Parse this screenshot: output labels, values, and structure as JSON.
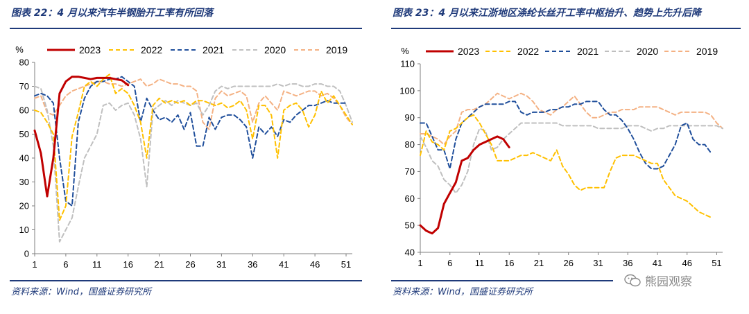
{
  "left_title": "图表 22：4 月以来汽车半钢胎开工率有所回落",
  "right_title": "图表 23：4 月以来江浙地区涤纶长丝开工率中枢抬升、趋势上先升后降",
  "left_source": "资料来源：Wind，国盛证券研究所",
  "right_source": "资料来源：Wind，国盛证券研究所",
  "watermark": "熊园观察",
  "colors": {
    "title": "#1f3a7a",
    "s2023": "#c00000",
    "s2022": "#ffc000",
    "s2021": "#1f4e9b",
    "s2020": "#bfbfbf",
    "s2019": "#f4b183"
  },
  "chart_data": [
    {
      "type": "line",
      "title": "4 月以来汽车半钢胎开工率有所回落",
      "unit_label": "%",
      "xlabel": "",
      "ylabel": "%",
      "xlim": [
        1,
        52
      ],
      "ylim": [
        0,
        80
      ],
      "x_ticks": [
        1,
        6,
        11,
        16,
        21,
        26,
        31,
        36,
        41,
        46,
        51
      ],
      "y_ticks": [
        0,
        10,
        20,
        30,
        40,
        50,
        60,
        70,
        80
      ],
      "legend": "top",
      "series": [
        {
          "name": "2023",
          "style": "solid",
          "x": [
            1,
            2,
            3,
            4,
            5,
            6,
            7,
            8,
            9,
            10,
            11,
            12,
            13,
            14,
            15,
            16
          ],
          "values": [
            51.5,
            42,
            24,
            40,
            67,
            72,
            74,
            74,
            73.5,
            73,
            73.5,
            73.5,
            73.5,
            73,
            72.5,
            70.5
          ]
        },
        {
          "name": "2022",
          "style": "dash",
          "x": [
            1,
            2,
            3,
            4,
            5,
            6,
            7,
            8,
            9,
            10,
            11,
            12,
            13,
            14,
            15,
            16,
            17,
            18,
            19,
            20,
            21,
            22,
            23,
            24,
            25,
            26,
            27,
            28,
            29,
            30,
            31,
            32,
            33,
            34,
            35,
            36,
            37,
            38,
            39,
            40,
            41,
            42,
            43,
            44,
            45,
            46,
            47,
            48,
            49,
            50,
            51,
            52
          ],
          "values": [
            60,
            59,
            55,
            50,
            14,
            20,
            49,
            59,
            70,
            72,
            70,
            73,
            75,
            67,
            69,
            67,
            62,
            55,
            40,
            62,
            65,
            63,
            64,
            63,
            64,
            62,
            64,
            64,
            63,
            62,
            63,
            61,
            62,
            64,
            60,
            48,
            62,
            62,
            58,
            40,
            60,
            62,
            63,
            60,
            53,
            58,
            68,
            63,
            66,
            62,
            58,
            54
          ]
        },
        {
          "name": "2021",
          "style": "dash",
          "x": [
            1,
            2,
            3,
            4,
            5,
            6,
            7,
            8,
            9,
            10,
            11,
            12,
            13,
            14,
            15,
            16,
            17,
            18,
            19,
            20,
            21,
            22,
            23,
            24,
            25,
            26,
            27,
            28,
            29,
            30,
            31,
            32,
            33,
            34,
            35,
            36,
            37,
            38,
            39,
            40,
            41,
            42,
            43,
            44,
            45,
            46,
            47,
            48,
            49,
            50,
            51
          ],
          "values": [
            66,
            67,
            66,
            63,
            40,
            22,
            20,
            55,
            65,
            70,
            72,
            72,
            73,
            73,
            74,
            72,
            70,
            55,
            65,
            60,
            56,
            57,
            55,
            58,
            52,
            59,
            45,
            45,
            57,
            52,
            57,
            58,
            58,
            56,
            53,
            40,
            53,
            50,
            53,
            49,
            56,
            55,
            58,
            60,
            62,
            62,
            63,
            64,
            63,
            63,
            63
          ]
        },
        {
          "name": "2020",
          "style": "dash",
          "x": [
            1,
            2,
            3,
            4,
            5,
            6,
            7,
            8,
            9,
            10,
            11,
            12,
            13,
            14,
            15,
            16,
            17,
            18,
            19,
            20,
            21,
            22,
            23,
            24,
            25,
            26,
            27,
            28,
            29,
            30,
            31,
            32,
            33,
            34,
            35,
            36,
            37,
            38,
            39,
            40,
            41,
            42,
            43,
            44,
            45,
            46,
            47,
            48,
            49,
            50,
            51,
            52
          ],
          "values": [
            70,
            69,
            60,
            45,
            5,
            10,
            15,
            28,
            40,
            45,
            50,
            62,
            63,
            60,
            62,
            63,
            58,
            48,
            28,
            60,
            62,
            64,
            62,
            64,
            63,
            62,
            63,
            58,
            62,
            68,
            70,
            69,
            70,
            70,
            70,
            70,
            70,
            70,
            70,
            71,
            70,
            71,
            71,
            70,
            70,
            71,
            71,
            70,
            70,
            68,
            62,
            55
          ]
        },
        {
          "name": "2019",
          "style": "dash",
          "x": [
            1,
            2,
            3,
            4,
            5,
            6,
            7,
            8,
            9,
            10,
            11,
            12,
            13,
            14,
            15,
            16,
            17,
            18,
            19,
            20,
            21,
            22,
            23,
            24,
            25,
            26,
            27,
            28,
            29,
            30,
            31,
            32,
            33,
            34,
            35,
            36,
            37,
            38,
            39,
            40,
            41,
            42,
            43,
            44,
            45,
            46,
            47,
            48,
            49,
            50,
            51,
            52
          ],
          "values": [
            65,
            66,
            59,
            58,
            62,
            66,
            68,
            69,
            70,
            71,
            72,
            72,
            71,
            71,
            70,
            71,
            72,
            73,
            70,
            71,
            73,
            72,
            71,
            71,
            70,
            70,
            68,
            55,
            52,
            65,
            68,
            66,
            67,
            68,
            66,
            55,
            63,
            66,
            63,
            60,
            68,
            67,
            66,
            67,
            68,
            68,
            66,
            67,
            65,
            62,
            57,
            54
          ]
        }
      ]
    },
    {
      "type": "line",
      "title": "4 月以来江浙地区涤纶长丝开工率中枢抬升、趋势上先升后降",
      "unit_label": "%",
      "xlabel": "",
      "ylabel": "%",
      "xlim": [
        1,
        52
      ],
      "ylim": [
        40,
        110
      ],
      "x_ticks": [
        1,
        6,
        11,
        16,
        21,
        26,
        31,
        36,
        41,
        46,
        51
      ],
      "y_ticks": [
        40,
        50,
        60,
        70,
        80,
        90,
        100,
        110
      ],
      "legend": "top",
      "series": [
        {
          "name": "2023",
          "style": "solid",
          "x": [
            1,
            2,
            3,
            4,
            5,
            6,
            7,
            8,
            9,
            10,
            11,
            12,
            13,
            14,
            15,
            16
          ],
          "values": [
            50,
            48,
            47,
            49,
            58,
            62,
            66,
            74,
            75,
            78,
            80,
            81,
            82,
            83,
            82,
            79
          ]
        },
        {
          "name": "2022",
          "style": "dash",
          "x": [
            1,
            2,
            3,
            4,
            5,
            6,
            7,
            8,
            9,
            10,
            11,
            12,
            13,
            14,
            15,
            16,
            17,
            18,
            19,
            20,
            21,
            22,
            23,
            24,
            25,
            26,
            27,
            28,
            29,
            30,
            31,
            32,
            33,
            34,
            35,
            36,
            37,
            38,
            39,
            40,
            41,
            42,
            43,
            44,
            45,
            46,
            47,
            48,
            49,
            50
          ],
          "values": [
            76,
            85,
            81,
            80,
            78,
            85,
            86,
            88,
            90,
            91,
            88,
            84,
            80,
            74,
            74,
            74,
            75,
            76,
            76,
            77,
            76,
            75,
            74,
            78,
            72,
            69,
            65,
            63,
            64,
            64,
            64,
            64,
            70,
            75,
            76,
            76,
            76,
            75,
            74,
            73,
            73,
            67,
            64,
            61,
            60,
            59,
            57,
            55,
            54,
            53
          ]
        },
        {
          "name": "2021",
          "style": "dash",
          "x": [
            1,
            2,
            3,
            4,
            5,
            6,
            7,
            8,
            9,
            10,
            11,
            12,
            13,
            14,
            15,
            16,
            17,
            18,
            19,
            20,
            21,
            22,
            23,
            24,
            25,
            26,
            27,
            28,
            29,
            30,
            31,
            32,
            33,
            34,
            35,
            36,
            37,
            38,
            39,
            40,
            41,
            42,
            43,
            44,
            45,
            46,
            47,
            48,
            49,
            50
          ],
          "values": [
            88,
            88,
            83,
            78,
            78,
            71,
            82,
            88,
            90,
            92,
            94,
            95,
            95,
            95,
            95,
            96,
            96,
            92,
            91,
            92,
            92,
            92,
            93,
            93,
            94,
            94,
            95,
            95,
            96,
            96,
            96,
            93,
            91,
            91,
            89,
            86,
            82,
            77,
            73,
            71,
            71,
            72,
            76,
            80,
            87,
            88,
            82,
            80,
            80,
            77
          ]
        },
        {
          "name": "2020",
          "style": "dash",
          "x": [
            1,
            2,
            3,
            4,
            5,
            6,
            7,
            8,
            9,
            10,
            11,
            12,
            13,
            14,
            15,
            16,
            17,
            18,
            19,
            20,
            21,
            22,
            23,
            24,
            25,
            26,
            27,
            28,
            29,
            30,
            31,
            32,
            33,
            34,
            35,
            36,
            37,
            38,
            39,
            40,
            41,
            42,
            43,
            44,
            45,
            46,
            47,
            48,
            49,
            50,
            51,
            52
          ],
          "values": [
            83,
            79,
            74,
            72,
            67,
            65,
            62,
            65,
            70,
            80,
            86,
            85,
            78,
            79,
            82,
            84,
            86,
            88,
            88,
            88,
            88,
            88,
            88,
            88,
            87,
            87,
            87,
            87,
            87,
            87,
            86,
            86,
            86,
            86,
            86,
            87,
            87,
            87,
            86,
            85,
            86,
            86,
            87,
            87,
            87,
            87,
            87,
            87,
            87,
            87,
            87,
            86
          ]
        },
        {
          "name": "2019",
          "style": "dash",
          "x": [
            1,
            2,
            3,
            4,
            5,
            6,
            7,
            8,
            9,
            10,
            11,
            12,
            13,
            14,
            15,
            16,
            17,
            18,
            19,
            20,
            21,
            22,
            23,
            24,
            25,
            26,
            27,
            28,
            29,
            30,
            31,
            32,
            33,
            34,
            35,
            36,
            37,
            38,
            39,
            40,
            41,
            42,
            43,
            44,
            45,
            46,
            47,
            48,
            49,
            50,
            51,
            52
          ],
          "values": [
            84,
            84,
            83,
            82,
            80,
            83,
            85,
            92,
            93,
            93,
            94,
            95,
            97,
            99,
            98,
            97,
            98,
            99,
            98,
            96,
            93,
            92,
            91,
            93,
            94,
            96,
            98,
            95,
            92,
            90,
            90,
            91,
            92,
            92,
            93,
            93,
            93,
            94,
            94,
            94,
            94,
            93,
            92,
            91,
            92,
            92,
            92,
            92,
            92,
            91,
            88,
            86
          ]
        }
      ]
    }
  ]
}
